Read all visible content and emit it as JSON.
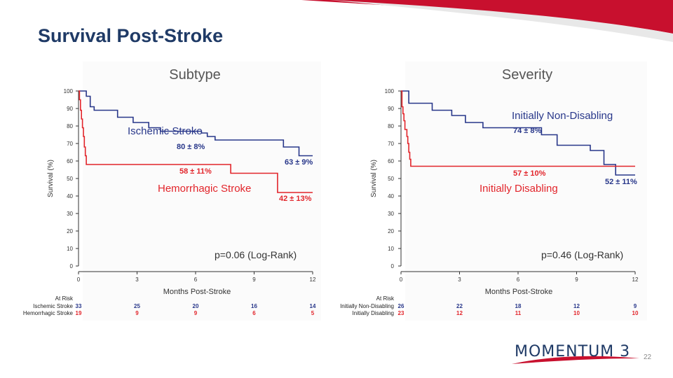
{
  "slide": {
    "title": "Survival Post-Stroke",
    "page_number": "22",
    "logo_text": "MOMENTUM 3"
  },
  "colors": {
    "blue": "#28378a",
    "red": "#e2252b",
    "title": "#1f3a66"
  },
  "chart_data": [
    {
      "type": "line",
      "title": "Subtype",
      "xlabel": "Months Post-Stroke",
      "ylabel": "Survival (%)",
      "xlim": [
        0,
        12
      ],
      "ylim": [
        0,
        100
      ],
      "xticks": [
        0,
        3,
        6,
        9,
        12
      ],
      "yticks": [
        0,
        10,
        20,
        30,
        40,
        50,
        60,
        70,
        80,
        90,
        100
      ],
      "pvalue": "p=0.06 (Log-Rank)",
      "series": [
        {
          "name": "Ischemic Stroke",
          "color": "#28378a",
          "label_value": "80 ± 8%",
          "end_value": "63 ± 9%",
          "steps": [
            [
              0,
              100
            ],
            [
              0.4,
              97
            ],
            [
              0.6,
              91
            ],
            [
              0.8,
              89
            ],
            [
              1.8,
              89
            ],
            [
              2.0,
              85
            ],
            [
              2.8,
              82
            ],
            [
              3.3,
              82
            ],
            [
              3.6,
              79
            ],
            [
              4.0,
              79
            ],
            [
              4.2,
              77
            ],
            [
              6.0,
              77
            ],
            [
              6.3,
              76
            ],
            [
              6.6,
              74
            ],
            [
              7.0,
              72
            ],
            [
              10.3,
              72
            ],
            [
              10.5,
              68
            ],
            [
              11.0,
              68
            ],
            [
              11.3,
              63
            ],
            [
              12,
              63
            ]
          ]
        },
        {
          "name": "Hemorrhagic Stroke",
          "color": "#e2252b",
          "label_value": "58 ± 11%",
          "end_value": "42 ± 13%",
          "steps": [
            [
              0,
              100
            ],
            [
              0.05,
              95
            ],
            [
              0.1,
              89
            ],
            [
              0.15,
              84
            ],
            [
              0.2,
              79
            ],
            [
              0.25,
              74
            ],
            [
              0.3,
              68
            ],
            [
              0.35,
              63
            ],
            [
              0.4,
              58
            ],
            [
              7.7,
              58
            ],
            [
              7.8,
              53
            ],
            [
              10.1,
              53
            ],
            [
              10.2,
              42
            ],
            [
              12,
              42
            ]
          ]
        }
      ],
      "at_risk": {
        "heading": "At Risk",
        "rows": [
          {
            "label": "Ischemic Stroke",
            "color": "#28378a",
            "values": [
              "33",
              "25",
              "20",
              "16",
              "14"
            ]
          },
          {
            "label": "Hemorrhagic Stroke",
            "color": "#e2252b",
            "values": [
              "19",
              "9",
              "9",
              "6",
              "5"
            ]
          }
        ]
      }
    },
    {
      "type": "line",
      "title": "Severity",
      "xlabel": "Months Post-Stroke",
      "ylabel": "Survival (%)",
      "xlim": [
        0,
        12
      ],
      "ylim": [
        0,
        100
      ],
      "xticks": [
        0,
        3,
        6,
        9,
        12
      ],
      "yticks": [
        0,
        10,
        20,
        30,
        40,
        50,
        60,
        70,
        80,
        90,
        100
      ],
      "pvalue": "p=0.46 (Log-Rank)",
      "series": [
        {
          "name": "Initially Non-Disabling",
          "color": "#28378a",
          "label_value": "74 ± 8%",
          "end_value": "52 ± 11%",
          "steps": [
            [
              0,
              100
            ],
            [
              0.4,
              93
            ],
            [
              1.5,
              93
            ],
            [
              1.6,
              89
            ],
            [
              2.5,
              89
            ],
            [
              2.6,
              86
            ],
            [
              3.2,
              86
            ],
            [
              3.3,
              82
            ],
            [
              4.0,
              82
            ],
            [
              4.2,
              79
            ],
            [
              7.0,
              79
            ],
            [
              7.2,
              75
            ],
            [
              7.8,
              75
            ],
            [
              8.0,
              69
            ],
            [
              9.5,
              69
            ],
            [
              9.7,
              66
            ],
            [
              10.3,
              66
            ],
            [
              10.4,
              58
            ],
            [
              10.9,
              58
            ],
            [
              11.0,
              52
            ],
            [
              12,
              52
            ]
          ]
        },
        {
          "name": "Initially Disabling",
          "color": "#e2252b",
          "label_value": "57 ± 10%",
          "end_value": "",
          "steps": [
            [
              0,
              100
            ],
            [
              0.05,
              91
            ],
            [
              0.1,
              87
            ],
            [
              0.15,
              83
            ],
            [
              0.2,
              78
            ],
            [
              0.3,
              74
            ],
            [
              0.35,
              70
            ],
            [
              0.4,
              65
            ],
            [
              0.45,
              61
            ],
            [
              0.5,
              57
            ],
            [
              12,
              57
            ]
          ]
        }
      ],
      "at_risk": {
        "heading": "At Risk",
        "rows": [
          {
            "label": "Initially Non-Disabling",
            "color": "#28378a",
            "values": [
              "26",
              "22",
              "18",
              "12",
              "9"
            ]
          },
          {
            "label": "Initially Disabling",
            "color": "#e2252b",
            "values": [
              "23",
              "12",
              "11",
              "10",
              "10"
            ]
          }
        ]
      }
    }
  ]
}
